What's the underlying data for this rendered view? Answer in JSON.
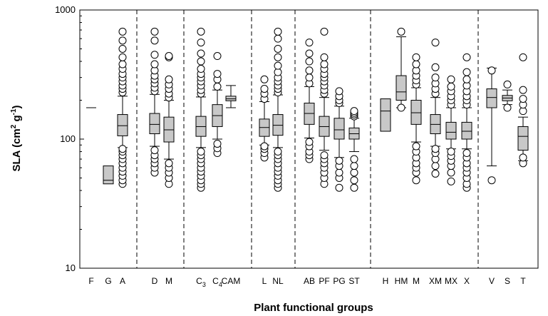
{
  "chart_data": {
    "type": "box",
    "xlabel": "Plant functional groups",
    "ylabel": {
      "base": "SLA (cm",
      "sup1": "2",
      "mid": " g",
      "sup2": "-1",
      "end": ")"
    },
    "yscale": "log",
    "ylim": [
      10,
      1000
    ],
    "yticks": [
      10,
      100,
      1000
    ],
    "colors": {
      "box_fill": "#c8c8c8",
      "stroke": "#000000",
      "divider": "#000000"
    },
    "group_dividers_after": [
      "A",
      "M",
      "CAM",
      "NL",
      "ST",
      "X"
    ],
    "categories": [
      {
        "label": "F",
        "only_line": 175
      },
      {
        "label": "G",
        "q1": 45,
        "median": 48,
        "q3": 62
      },
      {
        "label": "A",
        "whislo": 86,
        "q1": 106,
        "median": 127,
        "q3": 155,
        "whishi": 215,
        "fliers": [
          45,
          48,
          52,
          56,
          60,
          65,
          70,
          75,
          80,
          84,
          230,
          245,
          260,
          280,
          300,
          320,
          350,
          380,
          430,
          500,
          580,
          680
        ]
      },
      {
        "label": "D",
        "whislo": 88,
        "q1": 110,
        "median": 130,
        "q3": 158,
        "whishi": 222,
        "fliers": [
          55,
          60,
          65,
          70,
          75,
          82,
          235,
          250,
          270,
          290,
          310,
          340,
          380,
          450,
          580,
          680
        ]
      },
      {
        "label": "M",
        "whislo": 70,
        "q1": 95,
        "median": 118,
        "q3": 148,
        "whishi": 200,
        "fliers": [
          45,
          50,
          55,
          60,
          65,
          210,
          225,
          245,
          265,
          290,
          430,
          440
        ]
      },
      {
        "label": "C3",
        "label_base": "C",
        "label_sub": "3",
        "whislo": 86,
        "q1": 105,
        "median": 125,
        "q3": 150,
        "whishi": 212,
        "fliers": [
          42,
          45,
          48,
          52,
          56,
          60,
          65,
          70,
          75,
          80,
          225,
          240,
          260,
          280,
          300,
          320,
          350,
          400,
          460,
          560,
          680
        ]
      },
      {
        "label": "C4",
        "label_base": "C",
        "label_sub": "4",
        "whislo": 100,
        "q1": 125,
        "median": 152,
        "q3": 185,
        "whishi": 240,
        "fliers": [
          78,
          85,
          92,
          255,
          290,
          320,
          440
        ]
      },
      {
        "label": "CAM",
        "whislo": 175,
        "q1": 198,
        "median": 205,
        "q3": 215,
        "whishi": 260
      },
      {
        "label": "L",
        "whislo": 90,
        "q1": 105,
        "median": 123,
        "q3": 143,
        "whishi": 195,
        "fliers": [
          72,
          78,
          84,
          88,
          205,
          225,
          245,
          290
        ]
      },
      {
        "label": "NL",
        "whislo": 86,
        "q1": 107,
        "median": 128,
        "q3": 155,
        "whishi": 220,
        "fliers": [
          42,
          45,
          48,
          52,
          56,
          60,
          65,
          70,
          75,
          80,
          230,
          245,
          260,
          280,
          300,
          330,
          370,
          430,
          500,
          600,
          680
        ]
      },
      {
        "label": "AB",
        "whislo": 102,
        "q1": 130,
        "median": 158,
        "q3": 190,
        "whishi": 255,
        "fliers": [
          70,
          75,
          80,
          88,
          95,
          270,
          300,
          340,
          400,
          460,
          560
        ]
      },
      {
        "label": "PF",
        "whislo": 82,
        "q1": 105,
        "median": 125,
        "q3": 150,
        "whishi": 210,
        "fliers": [
          45,
          50,
          55,
          60,
          65,
          70,
          75,
          225,
          240,
          260,
          280,
          300,
          320,
          350,
          380,
          430,
          680
        ]
      },
      {
        "label": "PG",
        "whislo": 72,
        "q1": 100,
        "median": 118,
        "q3": 145,
        "whishi": 180,
        "fliers": [
          42,
          50,
          55,
          62,
          68,
          190,
          200,
          215,
          235
        ]
      },
      {
        "label": "ST",
        "whislo": 80,
        "q1": 100,
        "median": 110,
        "q3": 122,
        "whishi": 145,
        "fliers": [
          42,
          48,
          55,
          62,
          70,
          150,
          155,
          160,
          165
        ]
      },
      {
        "label": "H",
        "q1": 115,
        "median": 165,
        "q3": 205
      },
      {
        "label": "HM",
        "whislo": 175,
        "q1": 200,
        "median": 232,
        "q3": 310,
        "whishi": 620,
        "fliers": [
          175,
          680
        ]
      },
      {
        "label": "M",
        "whislo": 95,
        "q1": 130,
        "median": 160,
        "q3": 200,
        "whishi": 250,
        "fliers": [
          48,
          55,
          60,
          65,
          72,
          80,
          88,
          265,
          285,
          310,
          340,
          380,
          430
        ]
      },
      {
        "label": "XM",
        "whislo": 88,
        "q1": 110,
        "median": 130,
        "q3": 155,
        "whishi": 210,
        "fliers": [
          54,
          62,
          70,
          78,
          84,
          225,
          245,
          270,
          300,
          360,
          560
        ]
      },
      {
        "label": "MX",
        "whislo": 84,
        "q1": 100,
        "median": 113,
        "q3": 135,
        "whishi": 175,
        "fliers": [
          47,
          55,
          62,
          68,
          74,
          80,
          185,
          200,
          215,
          235,
          255,
          290
        ]
      },
      {
        "label": "X",
        "whislo": 84,
        "q1": 100,
        "median": 115,
        "q3": 135,
        "whishi": 175,
        "fliers": [
          42,
          45,
          50,
          55,
          60,
          65,
          72,
          78,
          185,
          200,
          215,
          235,
          260,
          290,
          330,
          430
        ]
      },
      {
        "label": "V",
        "whislo": 62,
        "q1": 175,
        "median": 210,
        "q3": 245,
        "whishi": 355,
        "fliers": [
          48,
          340
        ]
      },
      {
        "label": "S",
        "whislo": 185,
        "q1": 198,
        "median": 208,
        "q3": 218,
        "whishi": 240,
        "fliers": [
          175,
          265
        ]
      },
      {
        "label": "T",
        "whislo": 68,
        "q1": 82,
        "median": 105,
        "q3": 125,
        "whishi": 148,
        "fliers": [
          65,
          72,
          165,
          185,
          205,
          240,
          430
        ]
      }
    ]
  }
}
